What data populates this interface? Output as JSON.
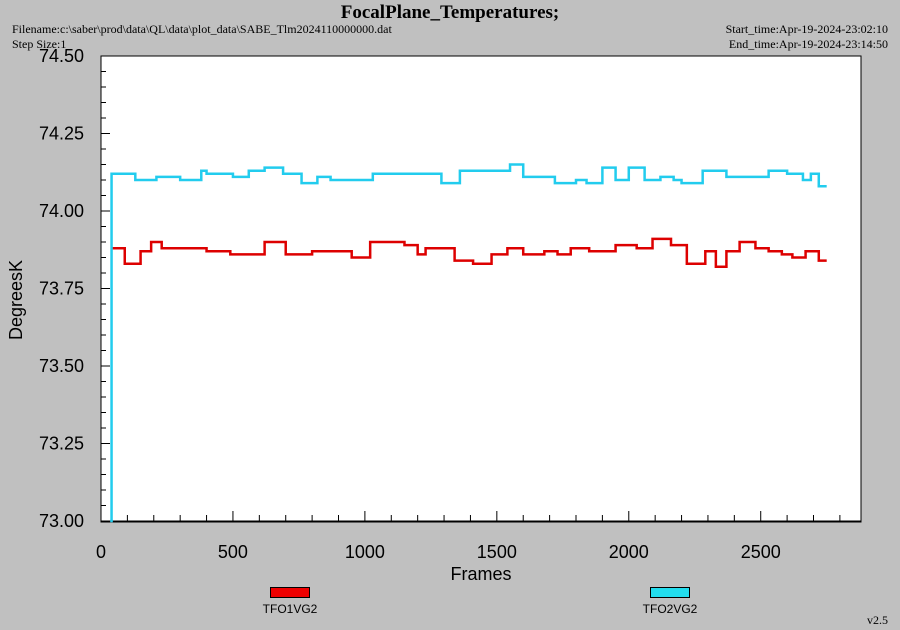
{
  "header": {
    "title": "FocalPlane_Temperatures;",
    "filename": "Filename:c:\\saber\\prod\\data\\QL\\data\\plot_data\\SABE_Tlm2024110000000.dat",
    "step_size": "Step Size:1",
    "start_time": "Start_time:Apr-19-2024-23:02:10",
    "end_time": "End_time:Apr-19-2024-23:14:50"
  },
  "version": "v2.5",
  "legend": [
    {
      "label": "TFO1VG2",
      "color": "#ee0000"
    },
    {
      "label": "TFO2VG2",
      "color": "#22ddee"
    }
  ],
  "chart_data": {
    "type": "line",
    "title": "FocalPlane_Temperatures;",
    "xlabel": "Frames",
    "ylabel": "DegreesK",
    "xlim": [
      0,
      2880
    ],
    "ylim": [
      73.0,
      74.5
    ],
    "xticks": [
      0,
      500,
      1000,
      1500,
      2000,
      2500
    ],
    "xtick_labels": [
      "0",
      "500",
      "1000",
      "1500",
      "2000",
      "2500"
    ],
    "yticks": [
      73.0,
      73.25,
      73.5,
      73.75,
      74.0,
      74.25,
      74.5
    ],
    "ytick_labels": [
      "73.00",
      "73.25",
      "73.50",
      "73.75",
      "74.00",
      "74.25",
      "74.50"
    ],
    "grid": false,
    "legend_position": "bottom",
    "series": [
      {
        "name": "TFO1VG2",
        "color": "#dd0000",
        "step": true,
        "x": [
          40,
          90,
          150,
          190,
          230,
          300,
          400,
          490,
          620,
          700,
          800,
          900,
          950,
          1020,
          1150,
          1200,
          1230,
          1300,
          1340,
          1410,
          1480,
          1540,
          1600,
          1680,
          1730,
          1780,
          1850,
          1950,
          2030,
          2090,
          2160,
          2220,
          2290,
          2330,
          2370,
          2420,
          2480,
          2530,
          2580,
          2620,
          2670,
          2720,
          2750
        ],
        "y": [
          73.88,
          73.83,
          73.87,
          73.9,
          73.88,
          73.88,
          73.87,
          73.86,
          73.9,
          73.86,
          73.87,
          73.87,
          73.85,
          73.9,
          73.89,
          73.86,
          73.88,
          73.88,
          73.84,
          73.83,
          73.86,
          73.88,
          73.86,
          73.87,
          73.86,
          73.88,
          73.87,
          73.89,
          73.88,
          73.91,
          73.89,
          73.83,
          73.87,
          73.82,
          73.87,
          73.9,
          73.88,
          73.87,
          73.86,
          73.85,
          73.87,
          73.84,
          73.84
        ]
      },
      {
        "name": "TFO2VG2",
        "color": "#22ccee",
        "step": true,
        "x": [
          35,
          40,
          130,
          210,
          300,
          380,
          400,
          450,
          500,
          560,
          620,
          690,
          760,
          820,
          870,
          1030,
          1290,
          1360,
          1550,
          1600,
          1640,
          1720,
          1800,
          1840,
          1900,
          1950,
          2000,
          2060,
          2120,
          2170,
          2200,
          2280,
          2370,
          2450,
          2530,
          2600,
          2660,
          2690,
          2720,
          2750
        ],
        "y": [
          73.0,
          74.12,
          74.1,
          74.11,
          74.1,
          74.13,
          74.12,
          74.12,
          74.11,
          74.13,
          74.14,
          74.12,
          74.09,
          74.11,
          74.1,
          74.12,
          74.09,
          74.13,
          74.15,
          74.11,
          74.11,
          74.09,
          74.1,
          74.09,
          74.14,
          74.1,
          74.14,
          74.1,
          74.11,
          74.1,
          74.09,
          74.13,
          74.11,
          74.11,
          74.13,
          74.12,
          74.1,
          74.12,
          74.08,
          74.08
        ]
      }
    ]
  }
}
